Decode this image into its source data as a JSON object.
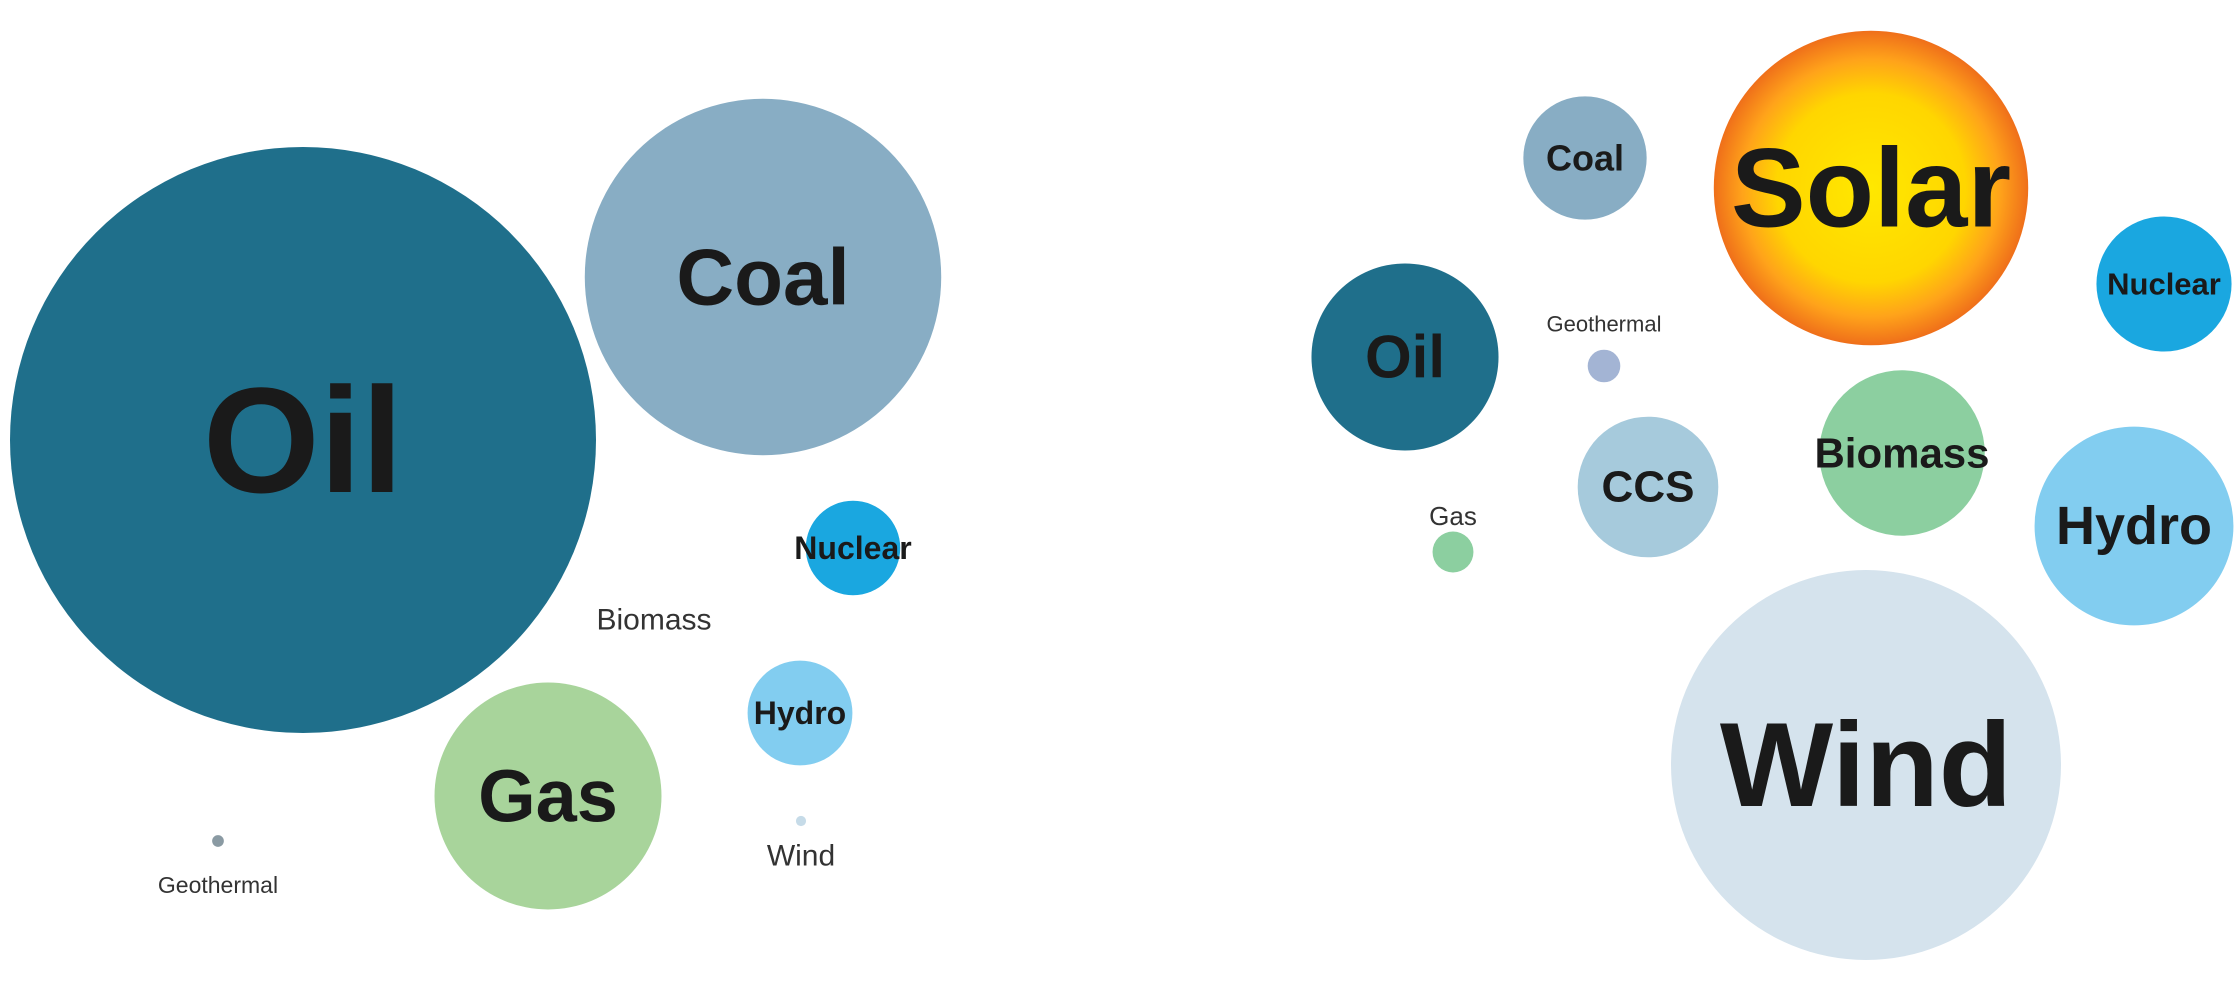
{
  "chart_data": [
    {
      "type": "bubble",
      "items": [
        {
          "label": "Oil",
          "size": 100,
          "color": "#1f6f8b"
        },
        {
          "label": "Coal",
          "size": 37,
          "color": "#88adc4"
        },
        {
          "label": "Gas",
          "size": 15,
          "color": "#a8d49b"
        },
        {
          "label": "Nuclear",
          "size": 2.6,
          "color": "#1aa7e0"
        },
        {
          "label": "Hydro",
          "size": 3.2,
          "color": "#82cdf0"
        },
        {
          "label": "Biomass",
          "size": 0,
          "color": "#a8d49b"
        },
        {
          "label": "Geothermal",
          "size": 0.04,
          "color": "#8a9aa3"
        },
        {
          "label": "Wind",
          "size": 0.03,
          "color": "#c6dbe8"
        }
      ]
    },
    {
      "type": "bubble",
      "items": [
        {
          "label": "Wind",
          "size": 100,
          "color": "#d5e3ed"
        },
        {
          "label": "Solar",
          "size": 65,
          "color": "#ffe200",
          "style": "sun",
          "edge_color": "#f07a18"
        },
        {
          "label": "Biomass",
          "size": 18,
          "color": "#8ccfa0"
        },
        {
          "label": "Hydro",
          "size": 26,
          "color": "#82cdf0"
        },
        {
          "label": "Oil",
          "size": 23,
          "color": "#1f6f8b"
        },
        {
          "label": "CCS",
          "size": 13,
          "color": "#a6cadc"
        },
        {
          "label": "Nuclear",
          "size": 12,
          "color": "#1aa7e0"
        },
        {
          "label": "Coal",
          "size": 10,
          "color": "#88adc4"
        },
        {
          "label": "Gas",
          "size": 1.1,
          "color": "#8ccfa0"
        },
        {
          "label": "Geothermal",
          "size": 0.7,
          "color": "#a3b4d4"
        }
      ]
    }
  ]
}
